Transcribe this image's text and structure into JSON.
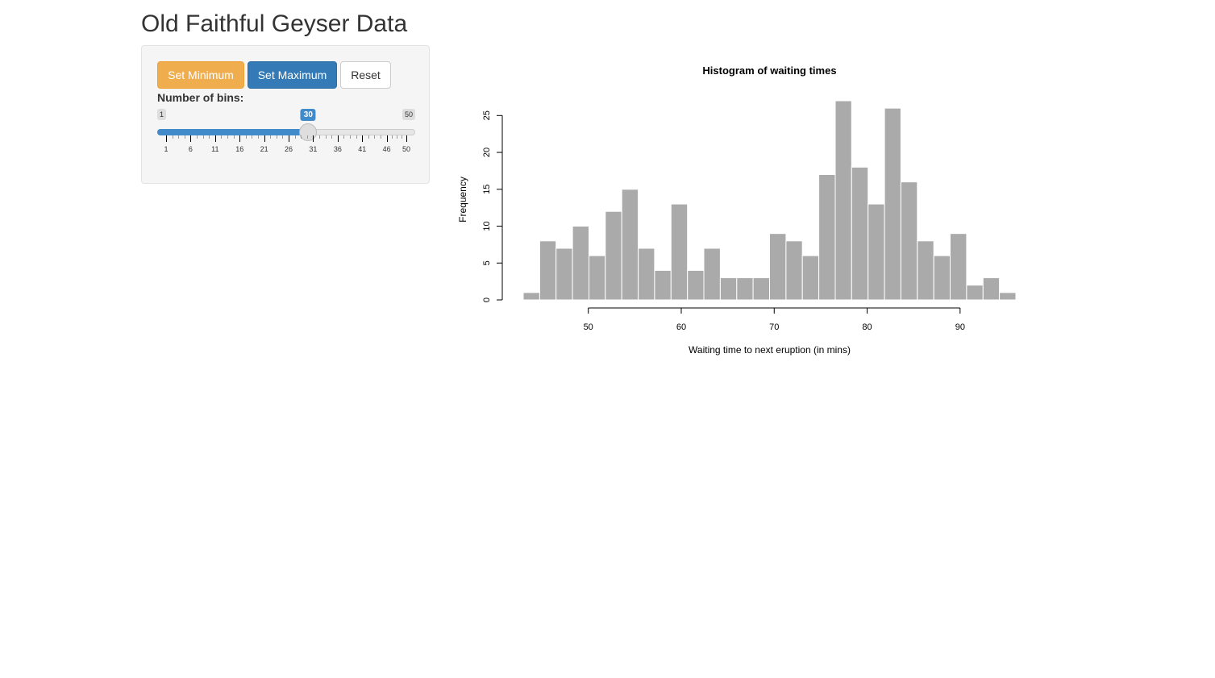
{
  "page": {
    "title": "Old Faithful Geyser Data"
  },
  "sidebar": {
    "buttons": {
      "set_min": "Set Minimum",
      "set_max": "Set Maximum",
      "reset": "Reset"
    },
    "slider": {
      "label": "Number of bins:",
      "min": 1,
      "max": 50,
      "value": 30,
      "min_label": "1",
      "max_label": "50",
      "value_label": "30",
      "grid_labels": [
        "1",
        "6",
        "11",
        "16",
        "21",
        "26",
        "31",
        "36",
        "41",
        "46",
        "50"
      ],
      "grid_values": [
        1,
        6,
        11,
        16,
        21,
        26,
        31,
        36,
        41,
        46,
        50
      ],
      "color": "#428bca"
    }
  },
  "chart_data": {
    "type": "bar",
    "title": "Histogram of waiting times",
    "xlabel": "Waiting time to next eruption (in mins)",
    "ylabel": "Frequency",
    "bin_edges": [
      43.0,
      44.77,
      46.53,
      48.3,
      50.07,
      51.83,
      53.6,
      55.37,
      57.13,
      58.9,
      60.67,
      62.43,
      64.2,
      65.97,
      67.73,
      69.5,
      71.27,
      73.03,
      74.8,
      76.57,
      78.33,
      80.1,
      81.87,
      83.63,
      85.4,
      87.17,
      88.93,
      90.7,
      92.47,
      94.23,
      96.0
    ],
    "values": [
      1,
      8,
      7,
      10,
      6,
      12,
      15,
      7,
      4,
      13,
      4,
      7,
      3,
      3,
      3,
      9,
      8,
      6,
      17,
      27,
      18,
      13,
      26,
      16,
      8,
      6,
      9,
      2,
      3,
      1
    ],
    "xlim": [
      43,
      96
    ],
    "ylim": [
      0,
      27
    ],
    "x_ticks": [
      50,
      60,
      70,
      80,
      90
    ],
    "x_tick_labels": [
      "50",
      "60",
      "70",
      "80",
      "90"
    ],
    "y_ticks": [
      0,
      5,
      10,
      15,
      20,
      25
    ],
    "y_tick_labels": [
      "0",
      "5",
      "10",
      "15",
      "20",
      "25"
    ],
    "bar_color": "#aaaaaa",
    "border_color": "#ffffff",
    "grid": false,
    "legend": "none"
  }
}
